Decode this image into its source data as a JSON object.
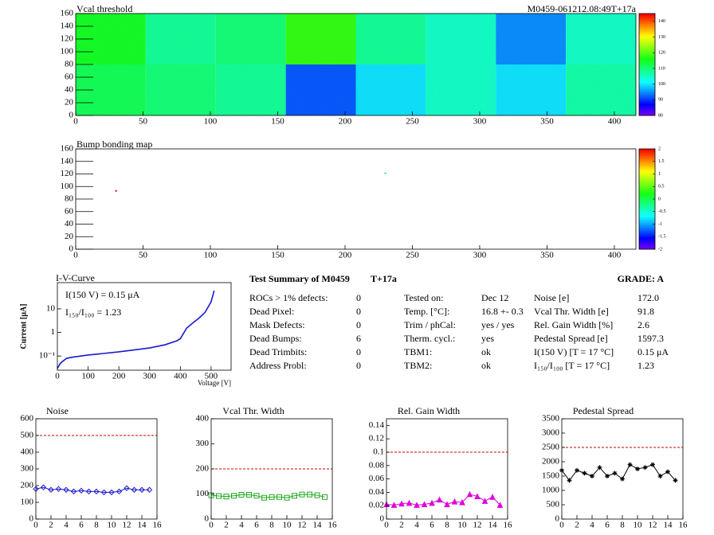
{
  "chart_data": [
    {
      "type": "heatmap",
      "title": "Vcal threshold",
      "subtitle": "M0459-061212.08:49T+17a",
      "xlim": [
        0,
        416
      ],
      "ylim": [
        0,
        160
      ],
      "xticks": [
        0,
        50,
        100,
        150,
        200,
        250,
        300,
        350,
        400
      ],
      "yticks": [
        0,
        20,
        40,
        60,
        80,
        100,
        120,
        140,
        160
      ],
      "xbins": [
        0,
        52,
        104,
        156,
        208,
        260,
        312,
        364,
        416
      ],
      "ybins": [
        0,
        80,
        160
      ],
      "values": [
        [
          112,
          110,
          108,
          92,
          100,
          105,
          100,
          107
        ],
        [
          115,
          108,
          110,
          118,
          108,
          105,
          95,
          105
        ]
      ],
      "zlim": [
        80,
        145
      ],
      "zticks": [
        80,
        90,
        100,
        110,
        120,
        130,
        140
      ]
    },
    {
      "type": "scatter",
      "title": "Bump bonding map",
      "xlim": [
        0,
        416
      ],
      "ylim": [
        0,
        160
      ],
      "xticks": [
        0,
        50,
        100,
        150,
        200,
        250,
        300,
        350,
        400
      ],
      "yticks": [
        0,
        20,
        40,
        60,
        80,
        100,
        120,
        140,
        160
      ],
      "x": [
        30,
        230
      ],
      "y": [
        93,
        121
      ],
      "values": [
        2,
        0
      ],
      "zlim": [
        -2,
        2
      ],
      "zticks": [
        -2,
        -1.5,
        -1,
        -0.5,
        0,
        0.5,
        1,
        1.5,
        2
      ]
    },
    {
      "type": "line",
      "title": "I-V-Curve",
      "xlabel": "Voltage [V]",
      "ylabel": "Current [μA]",
      "annotations": [
        "I(150 V) = 0.15 μA",
        "I₁₅₀/I₁₀₀ =  1.23"
      ],
      "log_y": true,
      "xlim": [
        0,
        565
      ],
      "ylim": [
        0.025,
        130
      ],
      "xticks": [
        0,
        100,
        200,
        300,
        400,
        500
      ],
      "yticks": [
        {
          "value": 0.1,
          "label": "10⁻¹"
        },
        1,
        10
      ],
      "x": [
        0,
        10,
        30,
        50,
        100,
        200,
        300,
        350,
        390,
        400,
        410,
        420,
        440,
        460,
        480,
        500,
        510
      ],
      "series": [
        {
          "color": "#1a1ad0",
          "values": [
            0.03,
            0.05,
            0.08,
            0.09,
            0.11,
            0.15,
            0.22,
            0.3,
            0.45,
            0.55,
            0.9,
            1.5,
            2.5,
            4,
            7,
            20,
            60
          ]
        }
      ]
    },
    {
      "type": "line",
      "title": "Noise",
      "xlim": [
        0,
        16
      ],
      "ylim": [
        0,
        600
      ],
      "xticks": [
        0,
        2,
        4,
        6,
        8,
        10,
        12,
        14,
        16
      ],
      "yticks": [
        0,
        100,
        200,
        300,
        400,
        500,
        600
      ],
      "limit": 500,
      "limit_color": "#cc0000",
      "x": [
        0,
        1,
        2,
        3,
        4,
        5,
        6,
        7,
        8,
        9,
        10,
        11,
        12,
        13,
        14,
        15
      ],
      "series": [
        {
          "color": "#1a1ad0",
          "marker": "diamond",
          "values": [
            180,
            190,
            175,
            180,
            175,
            165,
            170,
            165,
            165,
            160,
            160,
            165,
            185,
            175,
            175,
            175
          ]
        }
      ]
    },
    {
      "type": "line",
      "title": "Vcal Thr. Width",
      "xlim": [
        0,
        16
      ],
      "ylim": [
        0,
        400
      ],
      "xticks": [
        0,
        2,
        4,
        6,
        8,
        10,
        12,
        14,
        16
      ],
      "yticks": [
        0,
        100,
        200,
        300,
        400
      ],
      "limit": 200,
      "limit_color": "#cc0000",
      "x": [
        0,
        1,
        2,
        3,
        4,
        5,
        6,
        7,
        8,
        9,
        10,
        11,
        12,
        13,
        14,
        15
      ],
      "series": [
        {
          "color": "#22aa22",
          "marker": "square",
          "values": [
            95,
            92,
            90,
            93,
            97,
            97,
            93,
            85,
            88,
            88,
            85,
            93,
            98,
            98,
            95,
            88
          ]
        }
      ]
    },
    {
      "type": "line",
      "title": "Rel. Gain Width",
      "xlim": [
        0,
        16
      ],
      "ylim": [
        0,
        0.15
      ],
      "xticks": [
        0,
        2,
        4,
        6,
        8,
        10,
        12,
        14,
        16
      ],
      "yticks": [
        0,
        0.02,
        0.04,
        0.06,
        0.08,
        0.1,
        0.12,
        0.14
      ],
      "limit": 0.1,
      "limit_color": "#cc0000",
      "x": [
        0,
        1,
        2,
        3,
        4,
        5,
        6,
        7,
        8,
        9,
        10,
        11,
        12,
        13,
        14,
        15
      ],
      "series": [
        {
          "color": "#dd00dd",
          "marker": "triangle",
          "values": [
            0.022,
            0.021,
            0.023,
            0.024,
            0.021,
            0.022,
            0.024,
            0.029,
            0.022,
            0.026,
            0.025,
            0.037,
            0.034,
            0.027,
            0.033,
            0.021
          ]
        }
      ]
    },
    {
      "type": "line",
      "title": "Pedestal Spread",
      "xlim": [
        0,
        16
      ],
      "ylim": [
        0,
        3500
      ],
      "xticks": [
        0,
        2,
        4,
        6,
        8,
        10,
        12,
        14,
        16
      ],
      "yticks": [
        0,
        500,
        1000,
        1500,
        2000,
        2500,
        3000,
        3500
      ],
      "limit": 2500,
      "limit_color": "#cc0000",
      "x": [
        0,
        1,
        2,
        3,
        4,
        5,
        6,
        7,
        8,
        9,
        10,
        11,
        12,
        13,
        14,
        15
      ],
      "series": [
        {
          "color": "#000000",
          "marker": "star",
          "values": [
            1700,
            1350,
            1700,
            1600,
            1500,
            1800,
            1500,
            1600,
            1400,
            1900,
            1750,
            1800,
            1900,
            1500,
            1650,
            1350
          ]
        }
      ]
    }
  ],
  "summary": {
    "title": "Test Summary of M0459",
    "tag": "T+17a",
    "grade": "GRADE:  A",
    "columns": [
      [
        [
          "ROCs > 1% defects:",
          "0"
        ],
        [
          "Dead Pixel:",
          "0"
        ],
        [
          "Mask Defects:",
          "0"
        ],
        [
          "Dead Bumps:",
          "6"
        ],
        [
          "Dead Trimbits:",
          "0"
        ],
        [
          "Address Probl:",
          "0"
        ]
      ],
      [
        [
          "Tested on:",
          "Dec 12"
        ],
        [
          "Temp. [°C]:",
          "16.8 +- 0.3"
        ],
        [
          "Trim / phCal:",
          "yes / yes"
        ],
        [
          "Therm. cycl.:",
          "yes"
        ],
        [
          "TBM1:",
          "ok"
        ],
        [
          "TBM2:",
          "ok"
        ]
      ],
      [
        [
          "Noise [e]",
          "172.0"
        ],
        [
          "Vcal Thr. Width [e]",
          "91.8"
        ],
        [
          "Rel. Gain Width [%]",
          "2.6"
        ],
        [
          "Pedestal Spread [e]",
          "1597.3"
        ],
        [
          "I(150 V) [T = 17 °C]",
          "0.15 μA"
        ],
        [
          "I₁₅₀/I₁₀₀  [T = 17 °C]",
          "1.23"
        ]
      ]
    ]
  }
}
